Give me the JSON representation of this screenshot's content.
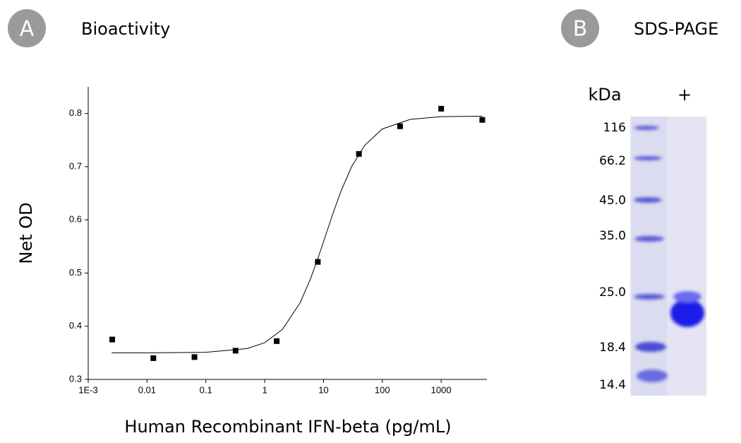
{
  "panels": [
    {
      "letter": "A",
      "title": "Bioactivity"
    },
    {
      "letter": "B",
      "title": "SDS-PAGE"
    }
  ],
  "chart_data": {
    "type": "scatter",
    "xlabel": "Human Recombinant IFN-beta (pg/mL)",
    "ylabel": "Net OD",
    "log_x": true,
    "color": "#000000",
    "xlim": [
      0.001,
      6000
    ],
    "ylim": [
      0.3,
      0.85
    ],
    "xticks": [
      {
        "value": 0.001,
        "label": "1E-3"
      },
      0.01,
      0.1,
      1,
      10,
      100,
      1000
    ],
    "yticks": [
      0.3,
      0.4,
      0.5,
      0.6,
      0.7,
      0.8
    ],
    "points": {
      "x": [
        0.00256,
        0.0128,
        0.064,
        0.32,
        1.6,
        8,
        40,
        200,
        1000,
        5000
      ],
      "y": [
        0.375,
        0.34,
        0.342,
        0.354,
        0.372,
        0.521,
        0.724,
        0.776,
        0.809,
        0.788
      ]
    },
    "fit": {
      "x": [
        0.0025,
        0.01,
        0.1,
        0.5,
        1,
        2,
        4,
        6,
        8,
        11,
        15,
        20,
        30,
        50,
        100,
        300,
        1000,
        5000
      ],
      "y": [
        0.35,
        0.35,
        0.351,
        0.358,
        0.369,
        0.394,
        0.444,
        0.489,
        0.527,
        0.5725,
        0.617,
        0.655,
        0.7,
        0.74,
        0.771,
        0.789,
        0.794,
        0.795
      ]
    }
  },
  "gel": {
    "lane_labels": [
      "kDa",
      "+"
    ],
    "markers": [
      "116",
      "66.2",
      "45.0",
      "35.0",
      "25.0",
      "18.4",
      "14.4"
    ]
  }
}
